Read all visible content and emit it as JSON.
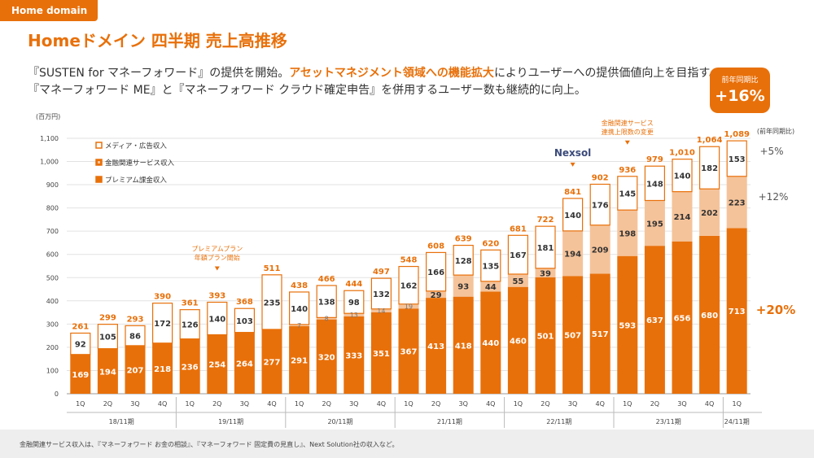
{
  "header": {
    "tag": "Home domain",
    "title": "Homeドメイン 四半期 売上高推移",
    "desc_line1_a": "『SUSTEN for マネーフォワード』の提供を開始。",
    "desc_line1_hl": "アセットマネジメント領域への機能拡大",
    "desc_line1_b": "によりユーザーへの提供価値向上を目指す。",
    "desc_line2": "『マネーフォワード ME』と『マネーフォワード クラウド確定申告』を併用するユーザー数も継続的に向上。"
  },
  "badge": {
    "label": "前年同期比",
    "value": "+16%"
  },
  "footer": {
    "note": "金融関連サービス収入は、『マネーフォワード お金の相談』、『マネーフォワード 固定費の見直し』、Next Solution社の収入など。"
  },
  "colors": {
    "premium": "#e8700a",
    "finance": "#f5c39a",
    "media": "#ffffff",
    "accent": "#e8700a"
  },
  "chart_data": {
    "type": "bar",
    "stacked": true,
    "unit_label": "(百万円)",
    "ylim": [
      0,
      1100
    ],
    "yticks": [
      "0",
      "100",
      "200",
      "300",
      "400",
      "500",
      "600",
      "700",
      "800",
      "900",
      "1,000",
      "1,100"
    ],
    "quarters": [
      "1Q",
      "2Q",
      "3Q",
      "4Q",
      "1Q",
      "2Q",
      "3Q",
      "4Q",
      "1Q",
      "2Q",
      "3Q",
      "4Q",
      "1Q",
      "2Q",
      "3Q",
      "4Q",
      "1Q",
      "2Q",
      "3Q",
      "4Q",
      "1Q",
      "2Q",
      "3Q",
      "4Q",
      "1Q"
    ],
    "years": [
      {
        "label": "18/11期",
        "count": 4
      },
      {
        "label": "19/11期",
        "count": 4
      },
      {
        "label": "20/11期",
        "count": 4
      },
      {
        "label": "21/11期",
        "count": 4
      },
      {
        "label": "22/11期",
        "count": 4
      },
      {
        "label": "23/11期",
        "count": 4
      },
      {
        "label": "24/11期",
        "count": 1
      }
    ],
    "series": [
      {
        "name": "プレミアム課金収入",
        "values": [
          169,
          194,
          207,
          218,
          236,
          254,
          264,
          277,
          291,
          320,
          333,
          351,
          367,
          413,
          418,
          440,
          460,
          501,
          507,
          517,
          593,
          637,
          656,
          680,
          713
        ]
      },
      {
        "name": "金融関連サービス収入",
        "values": [
          0,
          0,
          0,
          0,
          0,
          0,
          0,
          0,
          7,
          8,
          13,
          14,
          19,
          29,
          93,
          44,
          55,
          39,
          194,
          209,
          198,
          195,
          214,
          202,
          223
        ]
      },
      {
        "name": "メディア・広告収入",
        "values": [
          92,
          105,
          86,
          172,
          126,
          140,
          103,
          235,
          140,
          138,
          98,
          132,
          162,
          166,
          128,
          135,
          167,
          181,
          140,
          176,
          145,
          148,
          140,
          182,
          153
        ]
      }
    ],
    "totals": [
      "261",
      "299",
      "293",
      "390",
      "361",
      "393",
      "368",
      "511",
      "438",
      "466",
      "444",
      "497",
      "548",
      "608",
      "639",
      "620",
      "681",
      "722",
      "841",
      "902",
      "936",
      "979",
      "1,010",
      "1,064",
      "1,089"
    ],
    "annotations": [
      {
        "text": "プレミアムプラン",
        "text2": "年額プラン開始",
        "index": 5
      },
      {
        "text": "Nexsol",
        "text2": "",
        "index": 18
      },
      {
        "text": "金融関連サービス",
        "text2": "連携上限数の変更",
        "index": 20
      }
    ],
    "yoy": {
      "header": "(前年同期比)",
      "media": "+5%",
      "finance": "+12%",
      "premium": "+20%"
    }
  }
}
